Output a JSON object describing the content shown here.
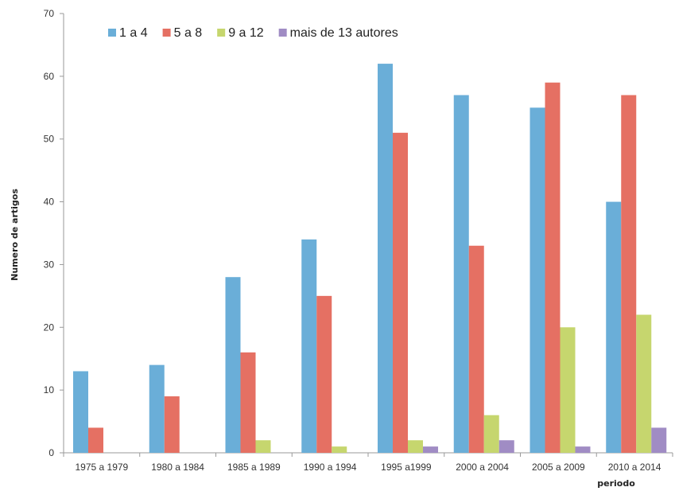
{
  "chart_data": {
    "type": "bar",
    "title": "",
    "xlabel": "periodo",
    "ylabel": "Numero de artigos",
    "ylim": [
      0,
      70
    ],
    "yticks": [
      "0",
      "10",
      "20",
      "30",
      "40",
      "50",
      "60",
      "70"
    ],
    "grid": false,
    "legend_position": "top-left",
    "categories": [
      "1975 a 1979",
      "1980 a 1984",
      "1985 a 1989",
      "1990 a 1994",
      "1995 a1999",
      "2000 a 2004",
      "2005 a 2009",
      "2010 a 2014"
    ],
    "series": [
      {
        "name": "1 a 4",
        "color": "#6aaed8",
        "values": [
          13,
          14,
          28,
          34,
          62,
          57,
          55,
          40
        ]
      },
      {
        "name": "5 a 8",
        "color": "#e57063",
        "values": [
          4,
          9,
          16,
          25,
          51,
          33,
          59,
          57
        ]
      },
      {
        "name": "9 a 12",
        "color": "#c6d66e",
        "values": [
          0,
          0,
          2,
          1,
          2,
          6,
          20,
          22
        ]
      },
      {
        "name": "mais de 13 autores",
        "color": "#a08cc4",
        "values": [
          0,
          0,
          0,
          0,
          1,
          2,
          1,
          4
        ]
      }
    ]
  }
}
